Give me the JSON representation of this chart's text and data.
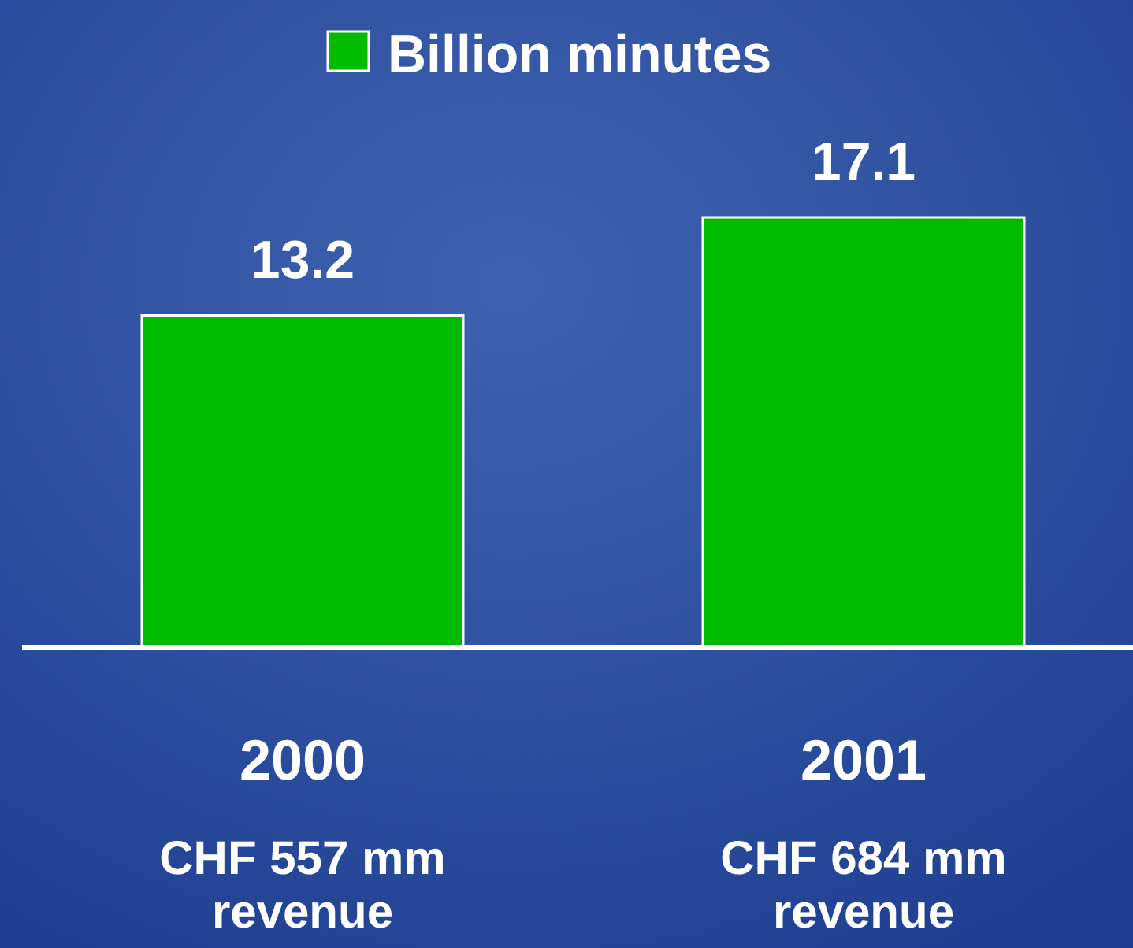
{
  "chart_data": {
    "type": "bar",
    "categories": [
      "2000",
      "2001"
    ],
    "series": [
      {
        "name": "Billion minutes",
        "color": "#00bb00",
        "values": [
          13.2,
          17.1
        ]
      }
    ],
    "data_labels": true,
    "legend": "top",
    "annotations": [
      "CHF 557 mm revenue",
      "CHF 684 mm revenue"
    ]
  }
}
